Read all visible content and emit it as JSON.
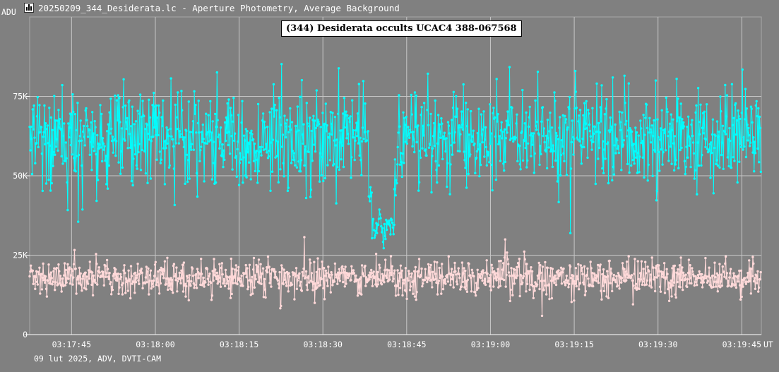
{
  "window": {
    "title": "20250209_344_Desiderata.lc - Aperture Photometry, Average Background",
    "icon": "lightcurve-app-icon"
  },
  "chart_data": {
    "type": "line",
    "title": "(344) Desiderata occults UCAC4 388-067568",
    "ylabel": "ADU",
    "xlabel": "UT",
    "footer": "09 lut 2025, ADV, DVTI-CAM",
    "ylim": [
      0,
      100000
    ],
    "xlim_seconds": [
      "03:17:37.5",
      "03:19:48.5"
    ],
    "y_ticks": [
      {
        "value": 0,
        "label": "0"
      },
      {
        "value": 25000,
        "label": "25K"
      },
      {
        "value": 50000,
        "label": "50K"
      },
      {
        "value": 75000,
        "label": "75K"
      }
    ],
    "x_ticks": [
      "03:17:45",
      "03:18:00",
      "03:18:15",
      "03:18:30",
      "03:18:45",
      "03:19:00",
      "03:19:15",
      "03:19:30",
      "03:19:45"
    ],
    "grid": true,
    "series": [
      {
        "name": "",
        "color": "#00ffff",
        "style": "line-markers",
        "segments": [
          {
            "t0": "03:17:37.5",
            "t1": "03:18:38.3",
            "mean": 62000,
            "sd": 7500
          },
          {
            "t0": "03:18:38.3",
            "t1": "03:18:38.8",
            "mean": 45000,
            "sd": 3000
          },
          {
            "t0": "03:18:38.8",
            "t1": "03:18:42.8",
            "mean": 34000,
            "sd": 2500
          },
          {
            "t0": "03:18:42.8",
            "t1": "03:18:43.4",
            "mean": 48000,
            "sd": 5000
          },
          {
            "t0": "03:18:43.4",
            "t1": "03:19:48.5",
            "mean": 63000,
            "sd": 7500
          }
        ]
      },
      {
        "name": "",
        "color": "#ffd9d9",
        "style": "line-markers",
        "segments": [
          {
            "t0": "03:17:37.5",
            "t1": "03:19:48.5",
            "mean": 18000,
            "sd": 2800
          }
        ]
      }
    ]
  }
}
